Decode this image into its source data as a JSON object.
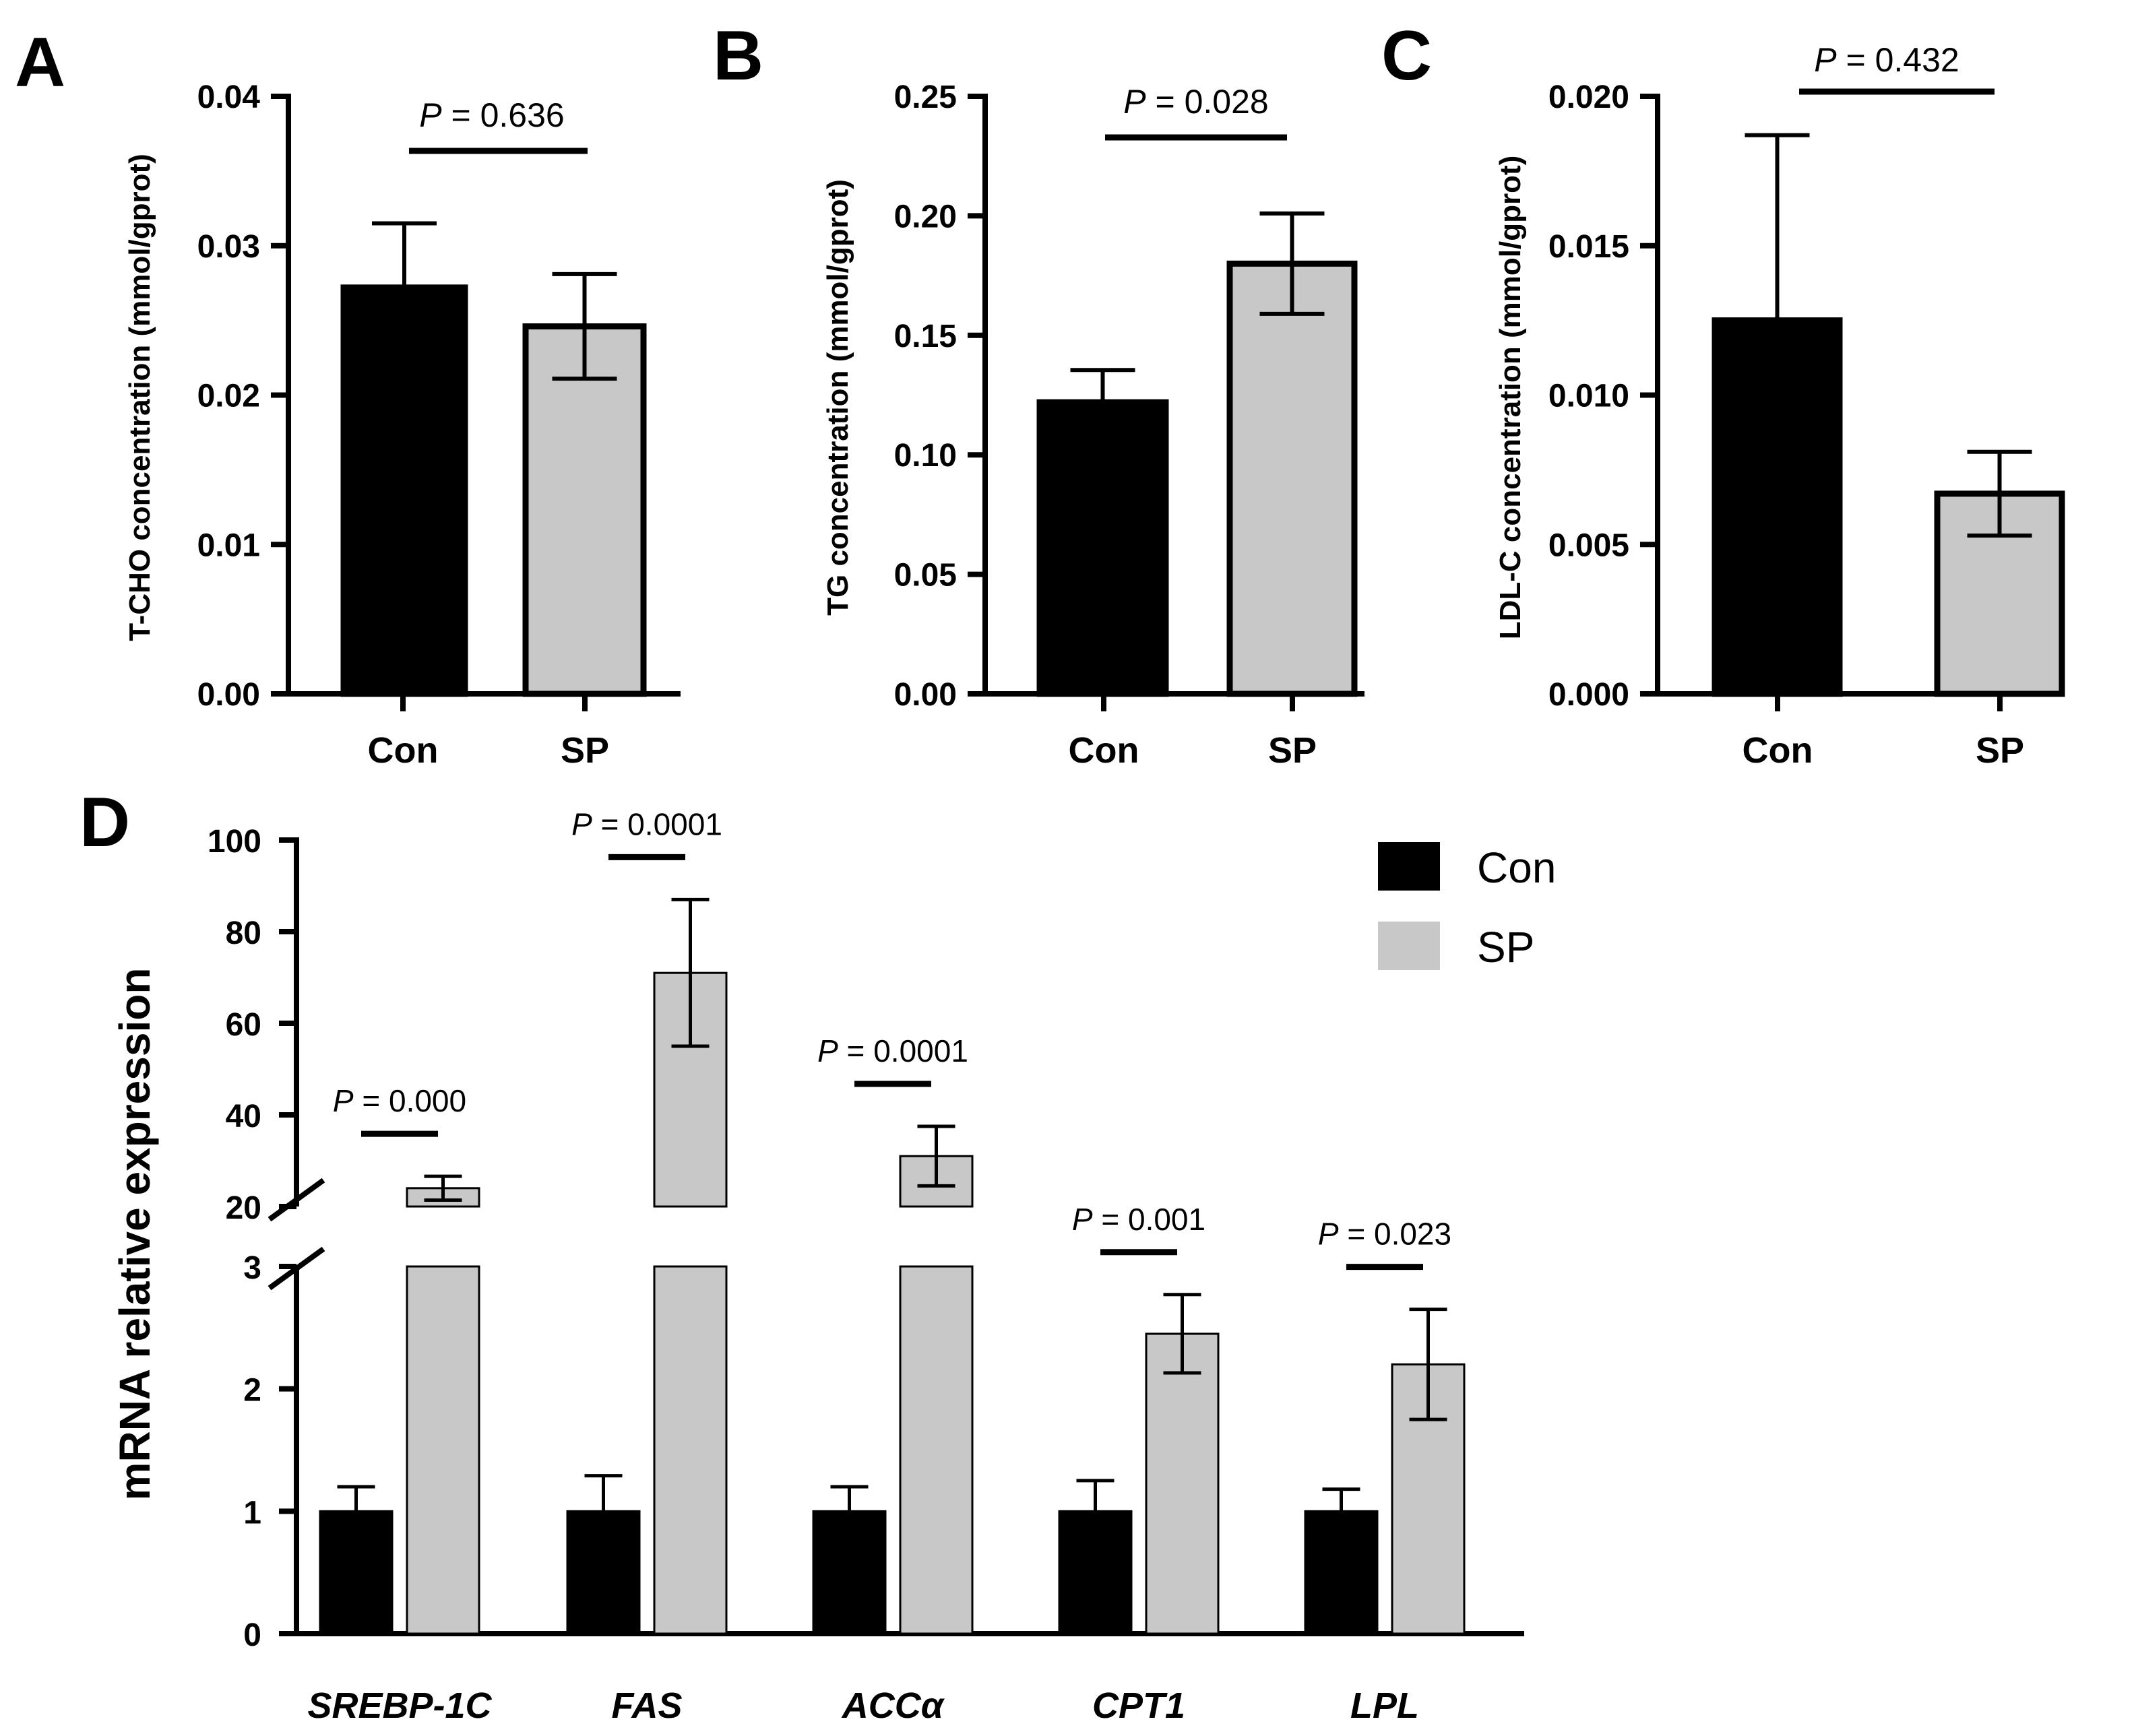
{
  "colors": {
    "con": "#000000",
    "sp": "#c8c8c8",
    "axis": "#000000"
  },
  "chart_data": [
    {
      "panel": "A",
      "type": "bar",
      "categories": [
        "Con",
        "SP"
      ],
      "values": [
        0.0272,
        0.0246
      ],
      "errors": [
        0.0043,
        0.0035
      ],
      "ylabel": "T-CHO concentration (mmol/gprot)",
      "ylim": [
        0,
        0.04
      ],
      "yticks": [
        "0.00",
        "0.01",
        "0.02",
        "0.03",
        "0.04"
      ],
      "p_label": "P",
      "p_value": " = 0.636"
    },
    {
      "panel": "B",
      "type": "bar",
      "categories": [
        "Con",
        "SP"
      ],
      "values": [
        0.122,
        0.18
      ],
      "errors": [
        0.0135,
        0.021
      ],
      "ylabel": "TG concentration (mmol/gprot)",
      "ylim": [
        0,
        0.25
      ],
      "yticks": [
        "0.00",
        "0.05",
        "0.10",
        "0.15",
        "0.20",
        "0.25"
      ],
      "p_label": "P",
      "p_value": " = 0.028"
    },
    {
      "panel": "C",
      "type": "bar",
      "categories": [
        "Con",
        "SP"
      ],
      "values": [
        0.0125,
        0.0067
      ],
      "errors": [
        0.0062,
        0.0014
      ],
      "ylabel": "LDL-C concentration (mmol/gprot)",
      "ylim": [
        0,
        0.02
      ],
      "yticks": [
        "0.000",
        "0.005",
        "0.010",
        "0.015",
        "0.020"
      ],
      "p_label": "P",
      "p_value": " = 0.432"
    },
    {
      "panel": "D",
      "type": "bar",
      "ylabel": "mRNA relative expression",
      "categories": [
        "SREBP-1C",
        "FAS",
        "ACCα",
        "CPT1",
        "LPL"
      ],
      "axis_break": {
        "lower_range": [
          0,
          3
        ],
        "upper_range": [
          20,
          100
        ]
      },
      "yticks_lower": [
        "0",
        "1",
        "2",
        "3"
      ],
      "yticks_upper": [
        "20",
        "40",
        "60",
        "80",
        "100"
      ],
      "legend": [
        "Con",
        "SP"
      ],
      "series": [
        {
          "name": "Con",
          "values": [
            1.0,
            1.0,
            1.0,
            1.0,
            1.0
          ],
          "errors": [
            0.2,
            0.29,
            0.2,
            0.25,
            0.18
          ]
        },
        {
          "name": "SP",
          "values": [
            24,
            71,
            31,
            2.45,
            2.2
          ],
          "errors": [
            2.6,
            16,
            6.5,
            0.32,
            0.45
          ]
        }
      ],
      "p_label": "P",
      "p_values": [
        " = 0.000",
        " = 0.0001",
        " = 0.0001",
        " = 0.001",
        " = 0.023"
      ]
    }
  ]
}
